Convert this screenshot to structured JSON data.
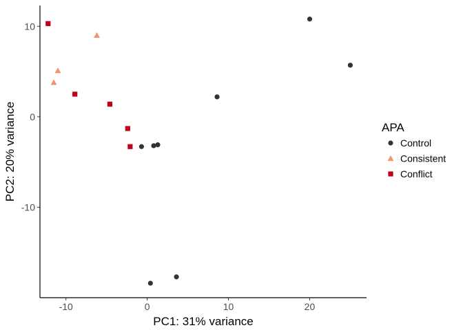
{
  "chart_data": {
    "type": "scatter",
    "xlabel": "PC1: 31% variance",
    "ylabel": "PC2: 20% variance",
    "xlim": [
      -13.2,
      27.0
    ],
    "ylim": [
      -20.0,
      12.3
    ],
    "x_ticks": [
      -10,
      0,
      10,
      20
    ],
    "x_tick_labels": [
      "-10",
      "0",
      "10",
      "20"
    ],
    "y_ticks": [
      10,
      0,
      -10
    ],
    "y_tick_labels": [
      "10",
      "0",
      "-10"
    ],
    "grid": false,
    "legend": {
      "title": "APA",
      "position": "right"
    },
    "series": [
      {
        "name": "Control",
        "shape": "circle",
        "color": "#333333",
        "points": [
          {
            "x": 20.0,
            "y": 10.8
          },
          {
            "x": 25.0,
            "y": 5.7
          },
          {
            "x": 8.6,
            "y": 2.2
          },
          {
            "x": -0.7,
            "y": -3.3
          },
          {
            "x": 0.8,
            "y": -3.2
          },
          {
            "x": 1.3,
            "y": -3.1
          },
          {
            "x": 0.4,
            "y": -18.4
          },
          {
            "x": 3.6,
            "y": -17.7
          }
        ]
      },
      {
        "name": "Consistent",
        "shape": "triangle",
        "color": "#F0956D",
        "points": [
          {
            "x": -6.2,
            "y": 9.0
          },
          {
            "x": -11.0,
            "y": 5.1
          },
          {
            "x": -11.5,
            "y": 3.8
          }
        ]
      },
      {
        "name": "Conflict",
        "shape": "square",
        "color": "#C0001A",
        "points": [
          {
            "x": -12.2,
            "y": 10.3
          },
          {
            "x": -8.9,
            "y": 2.5
          },
          {
            "x": -4.6,
            "y": 1.4
          },
          {
            "x": -2.4,
            "y": -1.3
          },
          {
            "x": -2.1,
            "y": -3.3
          }
        ]
      }
    ]
  }
}
